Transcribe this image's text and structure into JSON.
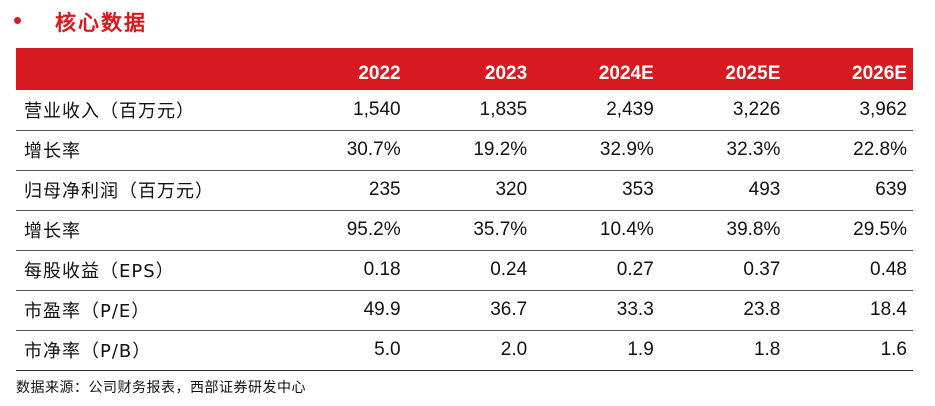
{
  "title": "核心数据",
  "table": {
    "header": [
      "",
      "2022",
      "2023",
      "2024E",
      "2025E",
      "2026E"
    ],
    "rows": [
      {
        "label": "营业收入（百万元）",
        "values": [
          "1,540",
          "1,835",
          "2,439",
          "3,226",
          "3,962"
        ]
      },
      {
        "label": "增长率",
        "values": [
          "30.7%",
          "19.2%",
          "32.9%",
          "32.3%",
          "22.8%"
        ]
      },
      {
        "label": "归母净利润（百万元）",
        "values": [
          "235",
          "320",
          "353",
          "493",
          "639"
        ]
      },
      {
        "label": "增长率",
        "values": [
          "95.2%",
          "35.7%",
          "10.4%",
          "39.8%",
          "29.5%"
        ]
      },
      {
        "label": "每股收益（EPS）",
        "values": [
          "0.18",
          "0.24",
          "0.27",
          "0.37",
          "0.48"
        ]
      },
      {
        "label": "市盈率（P/E）",
        "values": [
          "49.9",
          "36.7",
          "33.3",
          "23.8",
          "18.4"
        ]
      },
      {
        "label": "市净率（P/B）",
        "values": [
          "5.0",
          "2.0",
          "1.9",
          "1.8",
          "1.6"
        ]
      }
    ]
  },
  "source": "数据来源：公司财务报表，西部证券研发中心",
  "colors": {
    "accent": "#d71920",
    "header_text": "#ffffff",
    "body_text": "#111111"
  }
}
